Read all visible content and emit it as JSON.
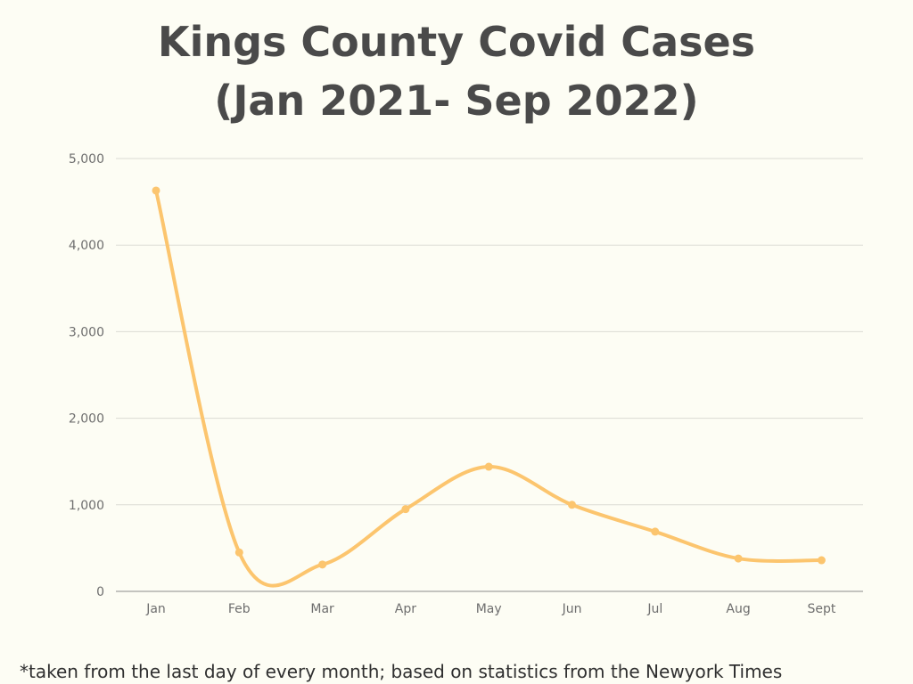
{
  "title_line1": "Kings County Covid Cases",
  "title_line2": "(Jan 2021- Sep 2022)",
  "footnote": "*taken from the last day of every month; based on statistics from the Newyork Times",
  "colors": {
    "background": "#fdfdf4",
    "line": "#fcc56e",
    "grid": "#dcdcd4",
    "axis_text": "#6e6e6e",
    "title": "#4a4a4a"
  },
  "chart_data": {
    "type": "line",
    "title": "Kings County Covid Cases (Jan 2021- Sep 2022)",
    "xlabel": "",
    "ylabel": "",
    "categories": [
      "Jan",
      "Feb",
      "Mar",
      "Apr",
      "May",
      "Jun",
      "Jul",
      "Aug",
      "Sept"
    ],
    "series": [
      {
        "values": [
          4630,
          450,
          310,
          950,
          1440,
          1000,
          690,
          380,
          360
        ]
      }
    ],
    "ylim": [
      0,
      5000
    ],
    "yticks": [
      0,
      1000,
      2000,
      3000,
      4000,
      5000
    ],
    "ytick_labels": [
      "0",
      "1,000",
      "2,000",
      "3,000",
      "4,000",
      "5,000"
    ],
    "grid": true,
    "smooth": true,
    "markers": true,
    "legend": "none"
  }
}
